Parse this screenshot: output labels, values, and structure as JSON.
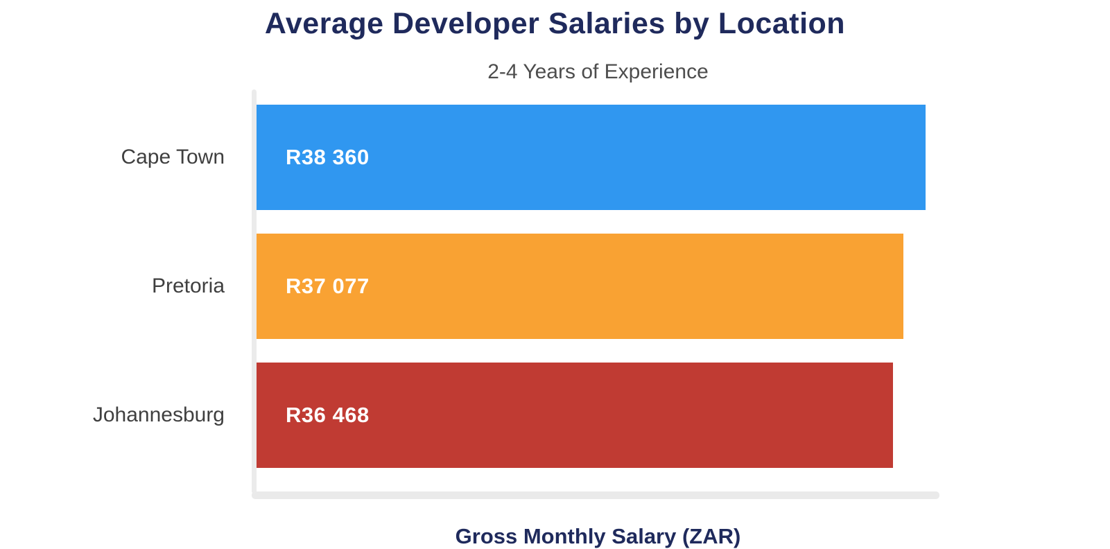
{
  "header": {
    "title": "Average Developer Salaries by Location",
    "subtitle": "2-4 Years of Experience"
  },
  "chart_data": {
    "type": "bar",
    "orientation": "horizontal",
    "title": "Average Developer Salaries by Location",
    "subtitle": "2-4 Years of Experience",
    "xlabel": "Gross Monthly Salary (ZAR)",
    "ylabel": "",
    "categories": [
      "Cape Town",
      "Pretoria",
      "Johannesburg"
    ],
    "values": [
      38360,
      37077,
      36468
    ],
    "value_labels": [
      "R38 360",
      "R37 077",
      "R36 468"
    ],
    "bar_colors": [
      "#3097F0",
      "#F9A233",
      "#C03B33"
    ],
    "xlim": [
      0,
      39150
    ],
    "grid": false,
    "legend": false,
    "currency": "ZAR"
  },
  "colors": {
    "title_text": "#1F2A5C",
    "subtitle_text": "#4D4D4D",
    "category_text": "#3F3F3F",
    "value_text": "#FFFFFF",
    "axis_line": "#EAEAEA",
    "background": "#FFFFFF"
  }
}
